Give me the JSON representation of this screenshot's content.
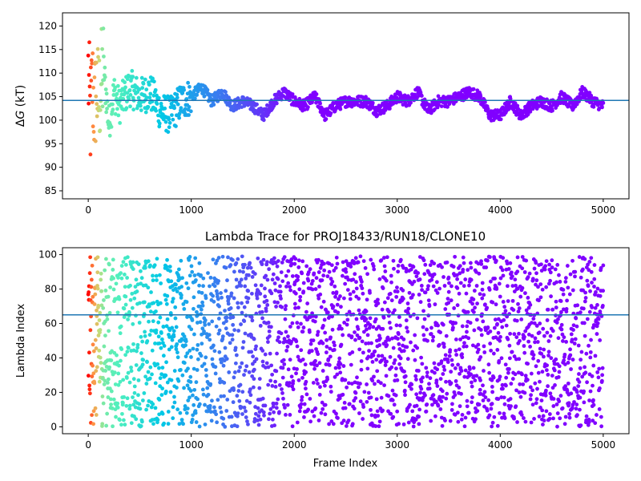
{
  "chart_data": [
    {
      "type": "scatter",
      "title": "",
      "xlabel": "",
      "ylabel": "ΔG (kT)",
      "xlim": [
        -250,
        5250
      ],
      "ylim": [
        83.3,
        122.8
      ],
      "xticks": [
        0,
        1000,
        2000,
        3000,
        4000,
        5000
      ],
      "yticks": [
        85,
        90,
        95,
        100,
        105,
        110,
        115,
        120
      ],
      "hline": 104.2,
      "grid": false,
      "colormap": "rainbow (early frames red, late frames violet)",
      "x": [
        0,
        20,
        40,
        60,
        80,
        100,
        150,
        200,
        250,
        300,
        400,
        500,
        600,
        700,
        800,
        900,
        1000,
        1100,
        1200,
        1300,
        1400,
        1500,
        1600,
        1700,
        1800,
        1900,
        2000,
        2100,
        2200,
        2300,
        2400,
        2500,
        2600,
        2700,
        2800,
        2900,
        3000,
        3100,
        3200,
        3300,
        3400,
        3500,
        3600,
        3700,
        3800,
        3900,
        4000,
        4100,
        4200,
        4300,
        4400,
        4500,
        4600,
        4700,
        4800,
        4900,
        5000
      ],
      "y": [
        110,
        100,
        108,
        102,
        107,
        104,
        111,
        99,
        106,
        103,
        107,
        105,
        106,
        102,
        101,
        104,
        105,
        107,
        104,
        106,
        103,
        104,
        103,
        101,
        104,
        106,
        104,
        103,
        105,
        101,
        103,
        104,
        104,
        104,
        102,
        103,
        105,
        104,
        106,
        102,
        104,
        104,
        105,
        106,
        105,
        101,
        101,
        104,
        101,
        103,
        104,
        103,
        105,
        103,
        106,
        104,
        103
      ]
    },
    {
      "type": "scatter",
      "title": "Lambda Trace for PROJ18433/RUN18/CLONE10",
      "xlabel": "Frame Index",
      "ylabel": "Lambda Index",
      "xlim": [
        -250,
        5250
      ],
      "ylim": [
        -4,
        104
      ],
      "xticks": [
        0,
        1000,
        2000,
        3000,
        4000,
        5000
      ],
      "yticks": [
        0,
        20,
        40,
        60,
        80,
        100
      ],
      "hline": 65,
      "grid": false,
      "colormap": "rainbow (early frames red, late frames violet)",
      "x": [
        0,
        250,
        500,
        750,
        1000,
        1250,
        1500,
        1750,
        2000,
        2250,
        2500,
        2750,
        3000,
        3250,
        3500,
        3750,
        4000,
        4250,
        4500,
        4750,
        5000
      ],
      "y": [
        50,
        45,
        30,
        60,
        40,
        70,
        35,
        55,
        25,
        65,
        45,
        80,
        20,
        50,
        75,
        30,
        60,
        40,
        55,
        70,
        35
      ]
    }
  ]
}
